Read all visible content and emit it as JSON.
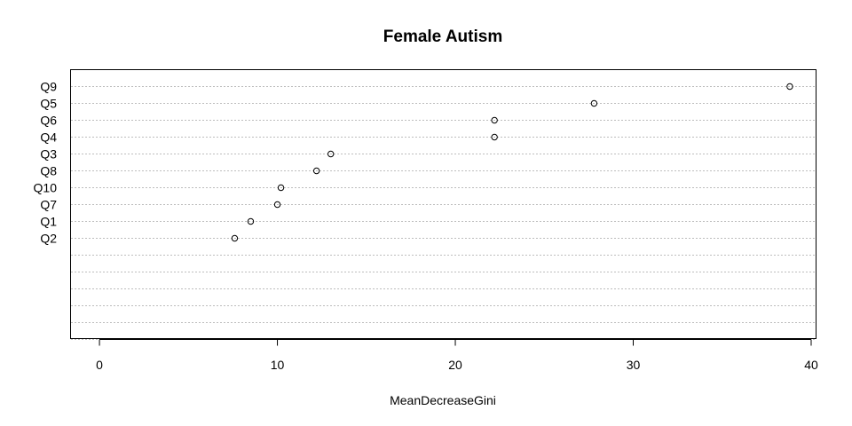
{
  "chart_data": {
    "type": "scatter",
    "title": "Female Autism",
    "xlabel": "MeanDecreaseGini",
    "ylabel": "",
    "xlim": [
      -1.6,
      40.3
    ],
    "xticks": [
      0,
      10,
      20,
      30,
      40
    ],
    "y_slots": 16,
    "grid": true,
    "categories": [
      "Q9",
      "Q5",
      "Q6",
      "Q4",
      "Q3",
      "Q8",
      "Q10",
      "Q7",
      "Q1",
      "Q2"
    ],
    "values": [
      38.8,
      27.8,
      22.2,
      22.2,
      13.0,
      12.2,
      10.2,
      10.0,
      8.5,
      7.6
    ]
  }
}
